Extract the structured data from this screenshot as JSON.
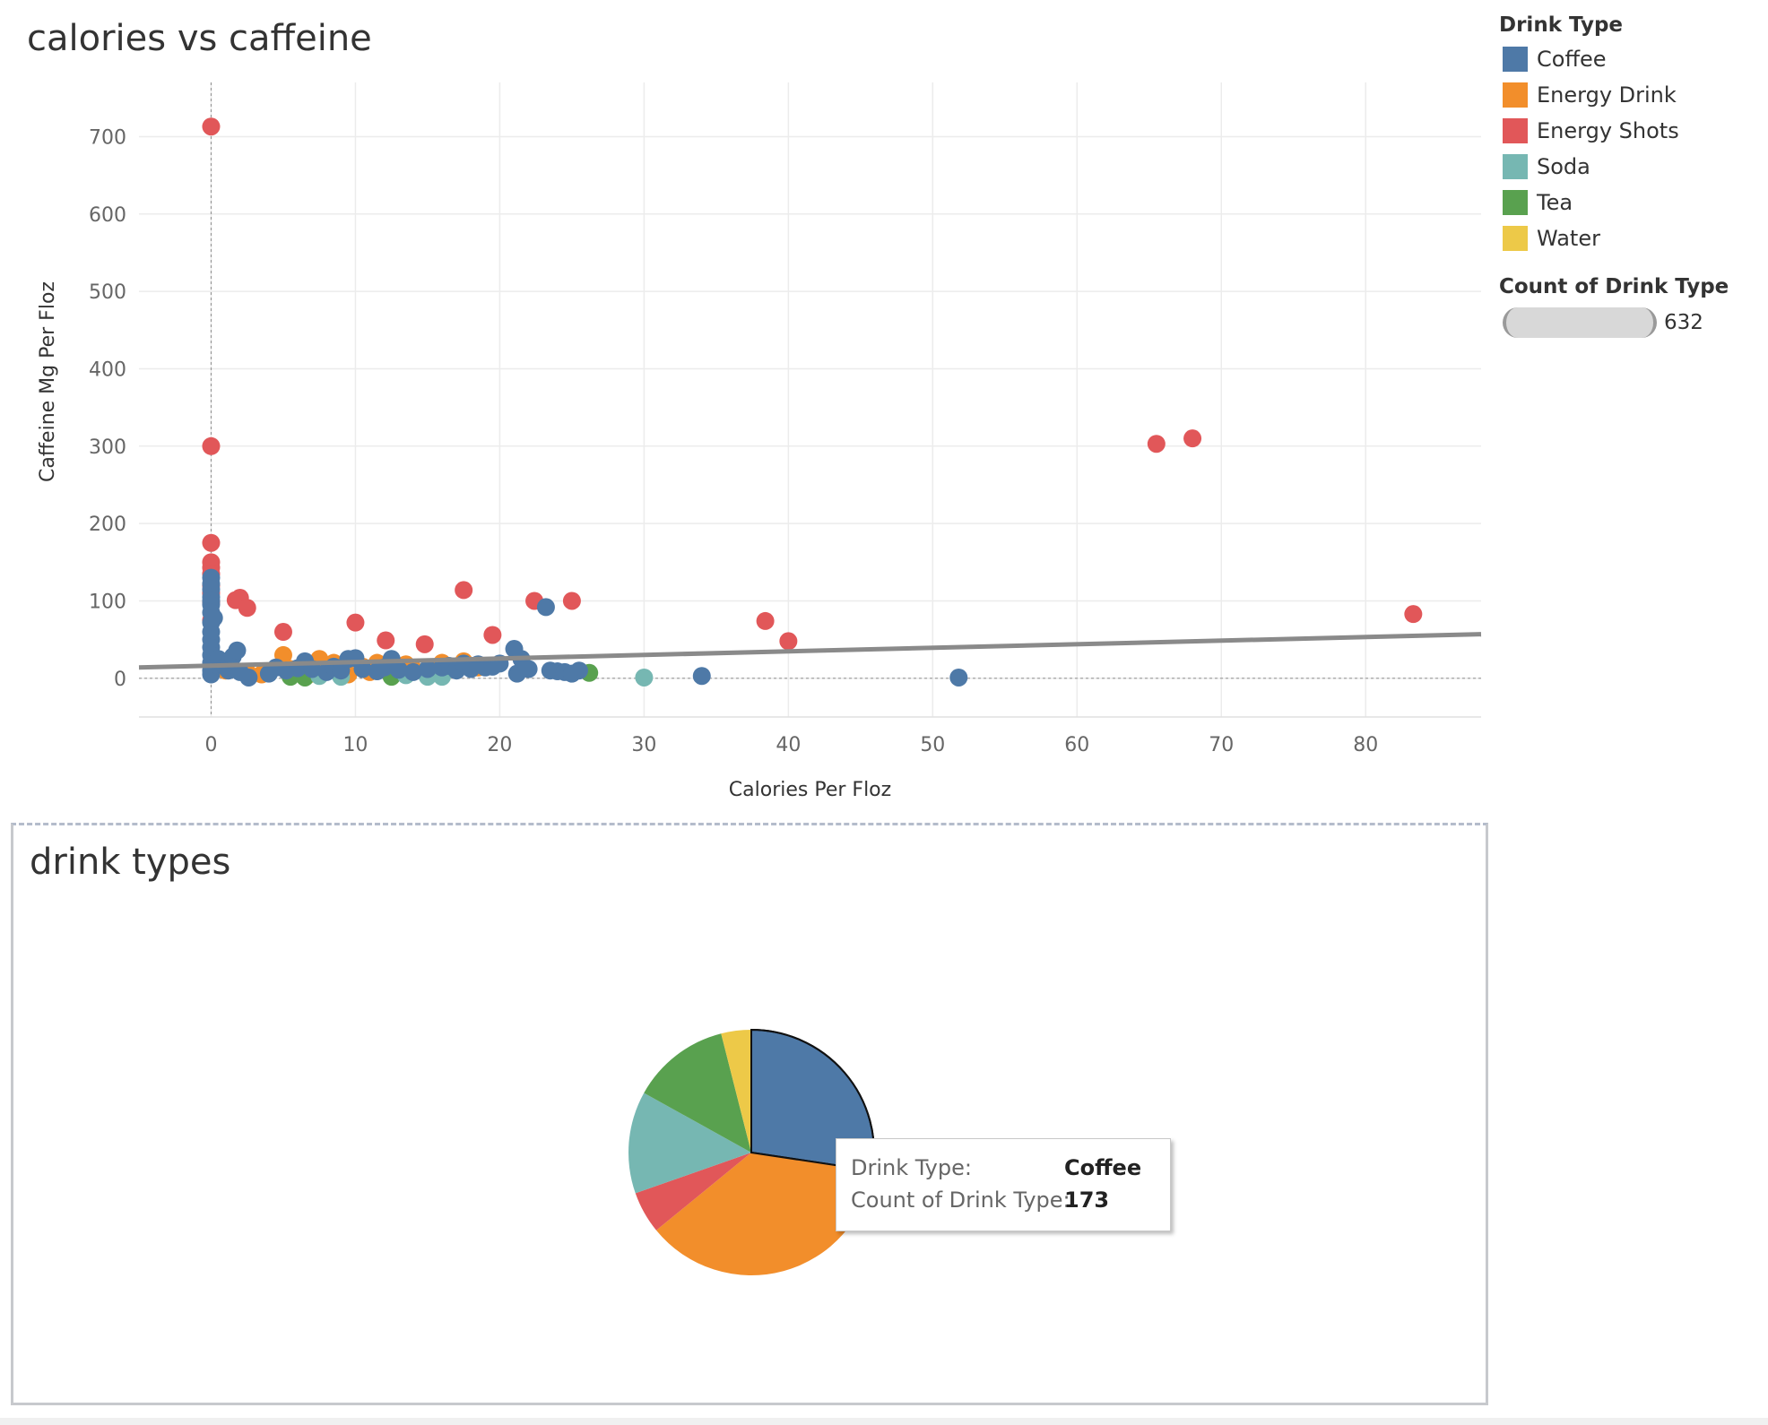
{
  "scatter": {
    "title": "calories vs caffeine",
    "x_axis_title": "Calories Per Floz",
    "y_axis_title": "Caffeine Mg Per Floz"
  },
  "legend": {
    "title": "Drink Type",
    "items": [
      {
        "label": "Coffee",
        "color": "#4e79a7"
      },
      {
        "label": "Energy Drink",
        "color": "#f28e2b"
      },
      {
        "label": "Energy Shots",
        "color": "#e15759"
      },
      {
        "label": "Soda",
        "color": "#76b7b2"
      },
      {
        "label": "Tea",
        "color": "#59a14f"
      },
      {
        "label": "Water",
        "color": "#edc948"
      }
    ],
    "size_title": "Count of Drink Type",
    "size_value": "632"
  },
  "pie": {
    "title": "drink types"
  },
  "tooltip": {
    "drink_type_label": "Drink Type:",
    "drink_type_value": "Coffee",
    "count_label": "Count of Drink Type:",
    "count_value": "173"
  },
  "chart_data": [
    {
      "type": "scatter",
      "title": "calories vs caffeine",
      "xlabel": "Calories Per Floz",
      "ylabel": "Caffeine Mg Per Floz",
      "xlim": [
        -5,
        88
      ],
      "ylim": [
        -50,
        770
      ],
      "x_ticks": [
        0,
        10,
        20,
        30,
        40,
        50,
        60,
        70,
        80
      ],
      "y_ticks": [
        0,
        100,
        200,
        300,
        400,
        500,
        600,
        700
      ],
      "grid": true,
      "legend_position": "right",
      "trend_line": {
        "x": [
          -5,
          88
        ],
        "y": [
          14,
          57
        ]
      },
      "reference_lines": {
        "x": 0,
        "y": 0
      },
      "series": [
        {
          "name": "Energy Shots",
          "color": "#e15759",
          "points": [
            [
              0,
              713
            ],
            [
              0,
              300
            ],
            [
              0,
              175
            ],
            [
              0,
              150
            ],
            [
              0,
              143
            ],
            [
              0,
              135
            ],
            [
              0,
              120
            ],
            [
              0,
              110
            ],
            [
              0,
              98
            ],
            [
              0,
              75
            ],
            [
              1.7,
              101
            ],
            [
              2,
              104
            ],
            [
              2.5,
              91
            ],
            [
              5,
              60
            ],
            [
              10,
              72
            ],
            [
              12.1,
              49
            ],
            [
              14.8,
              44
            ],
            [
              17.5,
              114
            ],
            [
              19.5,
              56
            ],
            [
              22.4,
              100
            ],
            [
              25,
              100
            ],
            [
              38.4,
              74
            ],
            [
              40,
              48
            ],
            [
              65.5,
              303
            ],
            [
              68,
              310
            ],
            [
              83.3,
              83
            ]
          ]
        },
        {
          "name": "Energy Drink",
          "color": "#f28e2b",
          "points": [
            [
              1,
              10
            ],
            [
              2.5,
              8
            ],
            [
              3.5,
              5
            ],
            [
              5,
              30
            ],
            [
              5.5,
              12
            ],
            [
              6,
              8
            ],
            [
              7,
              6
            ],
            [
              7.5,
              25
            ],
            [
              8,
              10
            ],
            [
              8.5,
              20
            ],
            [
              9.5,
              5
            ],
            [
              10.5,
              15
            ],
            [
              11,
              8
            ],
            [
              11.5,
              20
            ],
            [
              12.5,
              10
            ],
            [
              13.5,
              18
            ],
            [
              14,
              12
            ],
            [
              15,
              8
            ],
            [
              16,
              20
            ],
            [
              17.5,
              22
            ],
            [
              18.5,
              14
            ]
          ]
        },
        {
          "name": "Tea",
          "color": "#59a14f",
          "points": [
            [
              5.5,
              2
            ],
            [
              6.5,
              1
            ],
            [
              12.5,
              2
            ],
            [
              26.2,
              7
            ]
          ]
        },
        {
          "name": "Soda",
          "color": "#76b7b2",
          "points": [
            [
              7.5,
              3
            ],
            [
              9,
              2
            ],
            [
              13.5,
              4
            ],
            [
              15,
              2
            ],
            [
              16,
              2
            ],
            [
              30,
              1
            ]
          ]
        },
        {
          "name": "Coffee",
          "color": "#4e79a7",
          "points": [
            [
              0,
              130
            ],
            [
              0,
              122
            ],
            [
              0,
              115
            ],
            [
              0,
              105
            ],
            [
              0,
              100
            ],
            [
              0,
              95
            ],
            [
              0,
              85
            ],
            [
              0,
              72
            ],
            [
              0,
              60
            ],
            [
              0,
              50
            ],
            [
              0,
              40
            ],
            [
              0,
              30
            ],
            [
              0,
              20
            ],
            [
              0,
              10
            ],
            [
              0,
              5
            ],
            [
              0.2,
              78
            ],
            [
              0.3,
              18
            ],
            [
              0.5,
              25
            ],
            [
              1,
              15
            ],
            [
              1.2,
              10
            ],
            [
              1.5,
              28
            ],
            [
              1.8,
              36
            ],
            [
              2,
              8
            ],
            [
              2.6,
              1
            ],
            [
              4,
              6
            ],
            [
              4.5,
              14
            ],
            [
              5.2,
              10
            ],
            [
              6,
              13
            ],
            [
              6.5,
              22
            ],
            [
              7,
              12
            ],
            [
              8,
              8
            ],
            [
              8.5,
              15
            ],
            [
              9,
              10
            ],
            [
              9.5,
              25
            ],
            [
              10,
              26
            ],
            [
              10.5,
              12
            ],
            [
              11.5,
              9
            ],
            [
              12,
              14
            ],
            [
              12.5,
              25
            ],
            [
              13,
              11
            ],
            [
              14,
              8
            ],
            [
              15,
              12
            ],
            [
              16,
              14
            ],
            [
              16.5,
              16
            ],
            [
              17,
              10
            ],
            [
              17.5,
              19
            ],
            [
              18,
              12
            ],
            [
              18.5,
              18
            ],
            [
              19,
              14
            ],
            [
              19.5,
              15
            ],
            [
              20,
              19
            ],
            [
              21,
              38
            ],
            [
              21.2,
              6
            ],
            [
              21.5,
              25
            ],
            [
              22,
              12
            ],
            [
              23.2,
              92
            ],
            [
              23.5,
              10
            ],
            [
              24,
              9
            ],
            [
              24.5,
              8
            ],
            [
              25,
              6
            ],
            [
              25.5,
              10
            ],
            [
              34,
              3
            ],
            [
              51.8,
              1
            ]
          ]
        }
      ]
    },
    {
      "type": "pie",
      "title": "drink types",
      "slices": [
        {
          "label": "Coffee",
          "value": 173,
          "color": "#4e79a7"
        },
        {
          "label": "Energy Drink",
          "value": 232,
          "color": "#f28e2b"
        },
        {
          "label": "Energy Shots",
          "value": 35,
          "color": "#e15759"
        },
        {
          "label": "Soda",
          "value": 85,
          "color": "#76b7b2"
        },
        {
          "label": "Tea",
          "value": 82,
          "color": "#59a14f"
        },
        {
          "label": "Water",
          "value": 25,
          "color": "#edc948"
        }
      ],
      "highlighted": "Coffee"
    }
  ]
}
